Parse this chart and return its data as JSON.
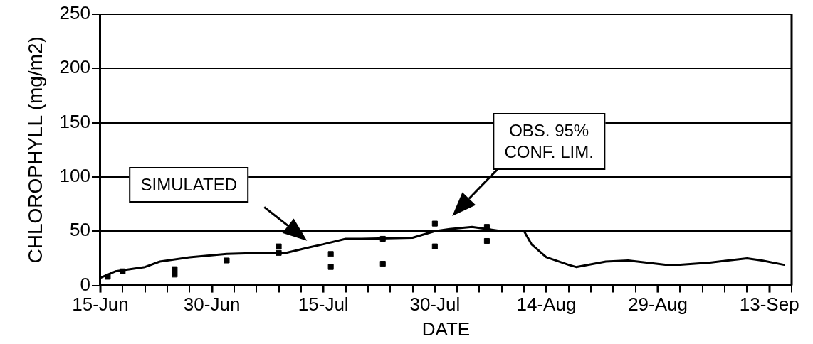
{
  "chart_data": {
    "type": "line",
    "xlabel": "DATE",
    "ylabel": "CHLOROPHYLL (mg/m2)",
    "xlim": [
      "--06-15",
      "--09-16"
    ],
    "xticks": [
      {
        "value": "--06-15",
        "label": "15-Jun"
      },
      {
        "value": "--06-18",
        "label": null
      },
      {
        "value": "--06-21",
        "label": null
      },
      {
        "value": "--06-24",
        "label": null
      },
      {
        "value": "--06-27",
        "label": null
      },
      {
        "value": "--06-30",
        "label": "30-Jun"
      },
      {
        "value": "--07-03",
        "label": null
      },
      {
        "value": "--07-06",
        "label": null
      },
      {
        "value": "--07-09",
        "label": null
      },
      {
        "value": "--07-12",
        "label": null
      },
      {
        "value": "--07-15",
        "label": "15-Jul"
      },
      {
        "value": "--07-18",
        "label": null
      },
      {
        "value": "--07-21",
        "label": null
      },
      {
        "value": "--07-24",
        "label": null
      },
      {
        "value": "--07-27",
        "label": null
      },
      {
        "value": "--07-30",
        "label": "30-Jul"
      },
      {
        "value": "--08-02",
        "label": null
      },
      {
        "value": "--08-05",
        "label": null
      },
      {
        "value": "--08-08",
        "label": null
      },
      {
        "value": "--08-11",
        "label": null
      },
      {
        "value": "--08-14",
        "label": "14-Aug"
      },
      {
        "value": "--08-17",
        "label": null
      },
      {
        "value": "--08-20",
        "label": null
      },
      {
        "value": "--08-23",
        "label": null
      },
      {
        "value": "--08-26",
        "label": null
      },
      {
        "value": "--08-29",
        "label": "29-Aug"
      },
      {
        "value": "--09-01",
        "label": null
      },
      {
        "value": "--09-04",
        "label": null
      },
      {
        "value": "--09-07",
        "label": null
      },
      {
        "value": "--09-10",
        "label": null
      },
      {
        "value": "--09-13",
        "label": "13-Sep"
      },
      {
        "value": "--09-16",
        "label": null
      }
    ],
    "ylim": [
      0,
      250
    ],
    "yticks": [
      0,
      50,
      100,
      150,
      200,
      250
    ],
    "grid": "y",
    "legend": false,
    "series": [
      {
        "color": "#000000",
        "marker": "none",
        "line_style": "solid",
        "x": [
          "--06-15",
          "--06-17",
          "--06-21",
          "--06-23",
          "--06-27",
          "--07-02",
          "--07-07",
          "--07-10",
          "--07-13",
          "--07-15",
          "--07-18",
          "--07-20",
          "--07-27",
          "--07-30",
          "--08-01",
          "--08-04",
          "--08-08",
          "--08-11",
          "--08-12",
          "--08-14",
          "--08-17",
          "--08-18",
          "--08-22",
          "--08-25",
          "--08-30",
          "--09-01",
          "--09-05",
          "--09-10",
          "--09-12",
          "--09-15"
        ],
        "values": [
          7,
          13,
          17,
          22,
          26,
          29,
          30,
          30,
          35,
          38,
          43,
          43,
          44,
          50,
          52,
          54,
          50,
          50,
          38,
          26,
          19,
          17,
          22,
          23,
          19,
          19,
          21,
          25,
          23,
          19
        ]
      },
      {
        "type": "scatter",
        "color": "#000000",
        "marker": "square",
        "x": [
          "--06-16",
          "--06-18",
          "--06-25",
          "--07-09",
          "--07-16",
          "--07-23",
          "--07-30",
          "--08-06"
        ],
        "values": [
          8,
          13,
          15,
          36,
          29,
          43,
          57,
          54
        ]
      },
      {
        "type": "scatter",
        "color": "#000000",
        "marker": "square",
        "x": [
          "--06-25",
          "--07-02",
          "--07-09",
          "--07-16",
          "--07-23",
          "--07-30",
          "--08-06"
        ],
        "values": [
          10,
          23,
          30,
          17,
          20,
          36,
          41
        ]
      }
    ],
    "annotations": [
      "SIMULATED",
      "OBS. 95%\nCONF. LIM."
    ]
  }
}
